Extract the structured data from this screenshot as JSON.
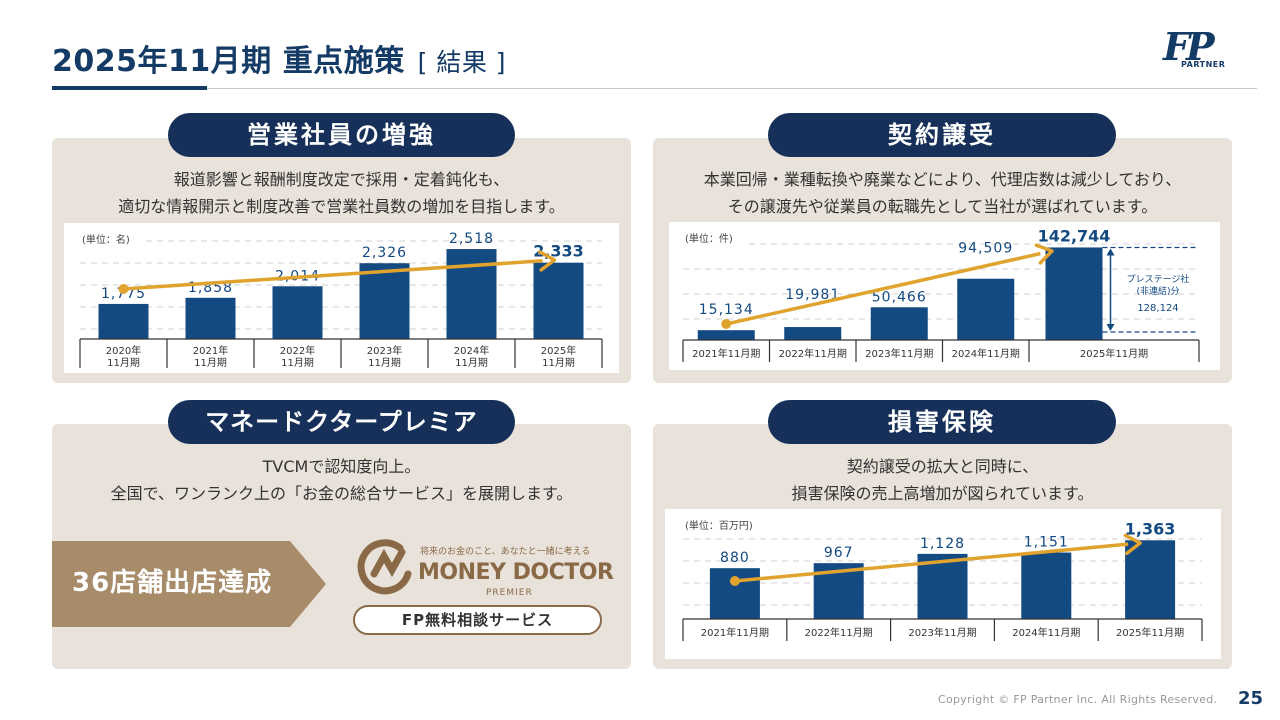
{
  "header": {
    "title": "2025年11月期 重点施策",
    "subtitle": "[ 結果 ]",
    "logo_text": "FP",
    "logo_word": "PARTNER"
  },
  "colors": {
    "navy": "#16305a",
    "bar": "#134a82",
    "arrow": "#e0a32e",
    "panel": "#e8e2da",
    "brown": "#a88b69"
  },
  "sections": {
    "sales": {
      "pill": "営業社員の増強",
      "desc_line1": "報道影響と報酬制度改定で採用・定着鈍化も、",
      "desc_line2": "適切な情報開示と制度改善で営業社員数の増加を目指します。"
    },
    "contract": {
      "pill": "契約譲受",
      "desc_line1": "本業回帰・業種転換や廃業などにより、代理店数は減少しており、",
      "desc_line2": "その譲渡先や従業員の転職先として当社が選ばれています。"
    },
    "money": {
      "pill": "マネードクタープレミア",
      "desc_line1": "TVCMで認知度向上。",
      "desc_line2": "全国で、ワンランク上の「お金の総合サービス」を展開します。",
      "store_text": "36店舗出店達成",
      "md_tag": "将来のお金のこと、あなたと一緒に考える",
      "md_name": "MONEY DOCTOR",
      "md_sub": "PREMIER",
      "fp_service": "FP無料相談サービス"
    },
    "insurance": {
      "pill": "損害保険",
      "desc_line1": "契約譲受の拡大と同時に、",
      "desc_line2": "損害保険の売上高増加が図られています。"
    }
  },
  "footer": {
    "copyright": "Copyright © FP Partner Inc. All Rights Reserved.",
    "page": "25"
  },
  "chart_data": [
    {
      "id": "sales",
      "type": "bar",
      "unit_label": "(単位：名)",
      "categories": [
        "2020年\n11月期",
        "2021年\n11月期",
        "2022年\n11月期",
        "2023年\n11月期",
        "2024年\n11月期",
        "2025年\n11月期"
      ],
      "values": [
        1775,
        1858,
        2014,
        2326,
        2518,
        2333
      ],
      "value_labels": [
        "1,775",
        "1,858",
        "2,014",
        "2,326",
        "2,518",
        "2,333"
      ],
      "highlight_last": true,
      "trend_arrow": true,
      "ylim": [
        1300,
        2600
      ]
    },
    {
      "id": "contract",
      "type": "bar",
      "unit_label": "(単位：件)",
      "categories": [
        "2021年11月期",
        "2022年11月期",
        "2023年11月期",
        "2024年11月期",
        "2025年11月期"
      ],
      "values": [
        15134,
        19981,
        50466,
        94509,
        142744
      ],
      "value_labels": [
        "15,134",
        "19,981",
        "50,466",
        "94,509",
        "142,744"
      ],
      "highlight_last": true,
      "trend_arrow": true,
      "ylim": [
        0,
        145000
      ],
      "annotation": {
        "label_line1": "プレステージ社",
        "label_line2": "(非連結)分",
        "value": "128,124"
      }
    },
    {
      "id": "insurance",
      "type": "bar",
      "unit_label": "(単位：百万円)",
      "categories": [
        "2021年11月期",
        "2022年11月期",
        "2023年11月期",
        "2024年11月期",
        "2025年11月期"
      ],
      "values": [
        880,
        967,
        1128,
        1151,
        1363
      ],
      "value_labels": [
        "880",
        "967",
        "1,128",
        "1,151",
        "1,363"
      ],
      "highlight_last": true,
      "trend_arrow": true,
      "ylim": [
        0,
        1420
      ]
    }
  ]
}
